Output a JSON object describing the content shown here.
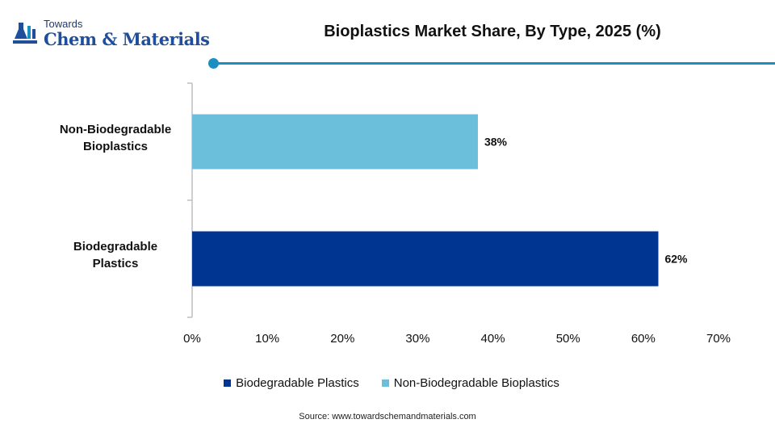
{
  "header": {
    "logo_top": "Towards",
    "logo_main": "Chem & Materials",
    "title": "Bioplastics Market Share, By Type, 2025 (%)"
  },
  "colors": {
    "biodegradable": "#003591",
    "non_biodegradable": "#6bbfdb",
    "accent": "#1b8fc0"
  },
  "chart_data": {
    "type": "bar",
    "orientation": "horizontal",
    "categories": [
      "Non-Biodegradable Bioplastics",
      "Biodegradable Plastics"
    ],
    "category_lines": [
      [
        "Non-Biodegradable",
        "Bioplastics"
      ],
      [
        "Biodegradable",
        "Plastics"
      ]
    ],
    "values": [
      38,
      62
    ],
    "data_labels": [
      "38%",
      "62%"
    ],
    "bar_colors": [
      "#6bbfdb",
      "#003591"
    ],
    "xlim": [
      0,
      70
    ],
    "x_ticks": [
      0,
      10,
      20,
      30,
      40,
      50,
      60,
      70
    ],
    "x_tick_labels": [
      "0%",
      "10%",
      "20%",
      "30%",
      "40%",
      "50%",
      "60%",
      "70%"
    ],
    "grid": false,
    "legend_position": "bottom"
  },
  "legend": [
    {
      "label": "Biodegradable Plastics",
      "color": "#003591"
    },
    {
      "label": "Non-Biodegradable Bioplastics",
      "color": "#6bbfdb"
    }
  ],
  "footer": {
    "source": "Source: www.towardschemandmaterials.com"
  }
}
